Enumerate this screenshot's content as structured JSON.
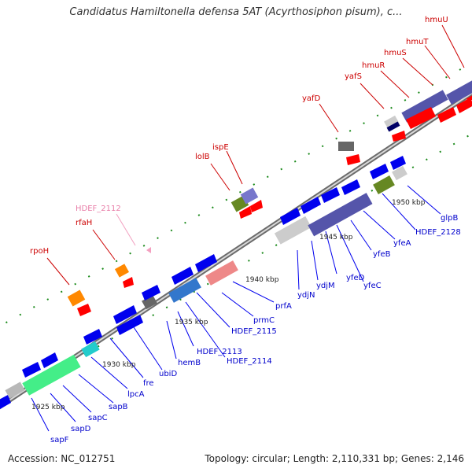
{
  "title": "Candidatus Hamiltonella defensa 5AT (Acyrthosiphon pisum), c...",
  "accession": "Accession: NC_012751",
  "topology": "Topology: circular; Length: 2,110,331 bp; Genes: 2,146",
  "scale_labels": [
    "1925 kbp",
    "1930 kbp",
    "1935 kbp",
    "1940 kbp",
    "1945 kbp",
    "1950 kbp"
  ],
  "upper_labels": [
    {
      "text": "rpoH",
      "color": "#cc0000"
    },
    {
      "text": "rfaH",
      "color": "#cc0000"
    },
    {
      "text": "HDEF_2112",
      "color": "#e87ea8"
    },
    {
      "text": "lolB",
      "color": "#cc0000"
    },
    {
      "text": "ispE",
      "color": "#cc0000"
    },
    {
      "text": "yafD",
      "color": "#cc0000"
    },
    {
      "text": "yafS",
      "color": "#cc0000"
    },
    {
      "text": "hmuR",
      "color": "#cc0000"
    },
    {
      "text": "hmuS",
      "color": "#cc0000"
    },
    {
      "text": "hmuT",
      "color": "#cc0000"
    },
    {
      "text": "hmuU",
      "color": "#cc0000"
    }
  ],
  "lower_labels": [
    {
      "text": "sapF",
      "color": "#0000cc"
    },
    {
      "text": "sapD",
      "color": "#0000cc"
    },
    {
      "text": "sapC",
      "color": "#0000cc"
    },
    {
      "text": "sapB",
      "color": "#0000cc"
    },
    {
      "text": "lpcA",
      "color": "#0000cc"
    },
    {
      "text": "fre",
      "color": "#0000cc"
    },
    {
      "text": "ubiD",
      "color": "#0000cc"
    },
    {
      "text": "hemB",
      "color": "#0000cc"
    },
    {
      "text": "HDEF_2113",
      "color": "#0000cc"
    },
    {
      "text": "HDEF_2114",
      "color": "#0000cc"
    },
    {
      "text": "HDEF_2115",
      "color": "#0000cc"
    },
    {
      "text": "prmC",
      "color": "#0000cc"
    },
    {
      "text": "prfA",
      "color": "#0000cc"
    },
    {
      "text": "ydjN",
      "color": "#0000cc"
    },
    {
      "text": "ydjM",
      "color": "#0000cc"
    },
    {
      "text": "yfeD",
      "color": "#0000cc"
    },
    {
      "text": "yfeC",
      "color": "#0000cc"
    },
    {
      "text": "yfeB",
      "color": "#0000cc"
    },
    {
      "text": "yfeA",
      "color": "#0000cc"
    },
    {
      "text": "HDEF_2128",
      "color": "#0000cc"
    },
    {
      "text": "glpB",
      "color": "#0000cc"
    }
  ],
  "colors": {
    "forward_gene": "#ff0000",
    "reverse_gene": "#0000ee",
    "tick": "#1a8a1a",
    "backbone": "#8a8a8a"
  }
}
